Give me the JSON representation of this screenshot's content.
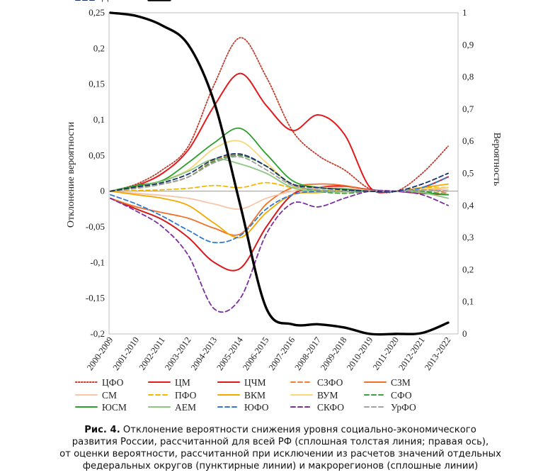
{
  "chart_data": {
    "type": "line",
    "title": "",
    "xlabel": "",
    "ylabel": "Отклонение вероятности",
    "ylabel_right": "Вероятность",
    "ylim": [
      -0.2,
      0.25
    ],
    "ylim_right": [
      0,
      1
    ],
    "yticks": [
      "-0,2",
      "-0,15",
      "-0,1",
      "-0,05",
      "0",
      "0,05",
      "0,1",
      "0,15",
      "0,2",
      "0,25"
    ],
    "yticks_right": [
      "0",
      "0,1",
      "0,2",
      "0,3",
      "0,4",
      "0,5",
      "0,6",
      "0,7",
      "0,8",
      "0,9",
      "1"
    ],
    "categories": [
      "2000-2009",
      "2001-2010",
      "2002-2011",
      "2003-2012",
      "2004-2013",
      "2005-2014",
      "2006-2015",
      "2007-2016",
      "2008-2017",
      "2009-2018",
      "2010-2019",
      "2011-2020",
      "2012-2021",
      "2013-2022"
    ],
    "legend_position": "bottom",
    "series": [
      {
        "name": "ЦФО",
        "color": "#c0392b",
        "dash": "dot",
        "width": 1.8,
        "axis": "left",
        "values": [
          0.0,
          0.01,
          0.03,
          0.063,
          0.15,
          0.215,
          0.16,
          0.085,
          0.05,
          0.03,
          0.003,
          0.0,
          0.025,
          0.063
        ]
      },
      {
        "name": "ЦМ",
        "color": "#e31a1c",
        "dash": "solid",
        "width": 2,
        "axis": "left",
        "values": [
          0.0,
          0.008,
          0.025,
          0.058,
          0.12,
          0.165,
          0.12,
          0.085,
          0.107,
          0.08,
          0.005,
          0.0,
          -0.003,
          -0.005
        ]
      },
      {
        "name": "ЦЧМ",
        "color": "#d7191c",
        "dash": "solid",
        "width": 2,
        "axis": "left",
        "values": [
          -0.01,
          -0.025,
          -0.04,
          -0.065,
          -0.1,
          -0.108,
          -0.05,
          -0.005,
          0.005,
          0.007,
          0.002,
          0.0,
          0.005,
          0.02
        ]
      },
      {
        "name": "СЗФО",
        "color": "#f08030",
        "dash": "dash",
        "width": 1.8,
        "axis": "left",
        "values": [
          0.0,
          0.005,
          0.01,
          0.02,
          0.043,
          0.05,
          0.035,
          0.01,
          0.005,
          0.003,
          0.0,
          0.0,
          0.003,
          -0.003
        ]
      },
      {
        "name": "СЗМ",
        "color": "#f07028",
        "dash": "solid",
        "width": 1.8,
        "axis": "left",
        "values": [
          -0.01,
          -0.022,
          -0.03,
          -0.038,
          -0.052,
          -0.06,
          -0.018,
          0.005,
          0.01,
          0.008,
          0.001,
          0.0,
          0.002,
          0.005
        ]
      },
      {
        "name": "СМ",
        "color": "#f7c6a8",
        "dash": "solid",
        "width": 1.8,
        "axis": "left",
        "values": [
          0.0,
          -0.003,
          -0.006,
          -0.01,
          -0.018,
          -0.025,
          -0.01,
          0.0,
          0.005,
          0.004,
          0.001,
          0.0,
          0.002,
          0.002
        ]
      },
      {
        "name": "ПФО",
        "color": "#f5b800",
        "dash": "dash",
        "width": 1.8,
        "axis": "left",
        "values": [
          0.0,
          0.001,
          0.002,
          0.004,
          0.008,
          0.005,
          0.012,
          0.005,
          0.002,
          0.001,
          0.0,
          0.0,
          0.005,
          0.005
        ]
      },
      {
        "name": "ВКМ",
        "color": "#f5a800",
        "dash": "solid",
        "width": 1.8,
        "axis": "left",
        "values": [
          0.0,
          -0.005,
          -0.01,
          -0.02,
          -0.045,
          -0.065,
          -0.03,
          -0.005,
          -0.002,
          0.0,
          0.0,
          0.0,
          0.005,
          0.01
        ]
      },
      {
        "name": "ВУМ",
        "color": "#f8d878",
        "dash": "solid",
        "width": 1.8,
        "axis": "left",
        "values": [
          0.0,
          0.006,
          0.015,
          0.03,
          0.06,
          0.07,
          0.04,
          0.008,
          0.0,
          -0.002,
          0.0,
          0.0,
          0.003,
          0.005
        ]
      },
      {
        "name": "СФО",
        "color": "#3ea040",
        "dash": "dash",
        "width": 1.8,
        "axis": "left",
        "values": [
          0.0,
          0.004,
          0.01,
          0.02,
          0.042,
          0.05,
          0.035,
          0.01,
          0.0,
          -0.003,
          0.0,
          0.0,
          0.0,
          -0.005
        ]
      },
      {
        "name": "ЮСМ",
        "color": "#2ca02c",
        "dash": "solid",
        "width": 1.8,
        "axis": "left",
        "values": [
          0.0,
          0.008,
          0.015,
          0.04,
          0.068,
          0.088,
          0.052,
          0.015,
          0.005,
          0.003,
          0.0,
          0.0,
          -0.002,
          -0.005
        ]
      },
      {
        "name": "АЕМ",
        "color": "#8cc882",
        "dash": "solid",
        "width": 1.8,
        "axis": "left",
        "values": [
          0.0,
          0.006,
          0.014,
          0.028,
          0.045,
          0.038,
          0.025,
          0.005,
          0.0,
          0.0,
          0.0,
          0.0,
          -0.002,
          -0.01
        ]
      },
      {
        "name": "ЮФО",
        "color": "#2e7bcf",
        "dash": "dash",
        "width": 1.8,
        "axis": "left",
        "values": [
          -0.005,
          -0.018,
          -0.035,
          -0.055,
          -0.072,
          -0.062,
          -0.025,
          -0.005,
          0.0,
          0.0,
          0.0,
          0.0,
          0.005,
          0.02
        ]
      },
      {
        "name": "СКФО",
        "color": "#7b2fa0",
        "dash": "dash",
        "width": 1.8,
        "axis": "left",
        "values": [
          -0.01,
          -0.028,
          -0.05,
          -0.09,
          -0.165,
          -0.15,
          -0.06,
          -0.017,
          -0.022,
          -0.01,
          0.0,
          0.0,
          -0.005,
          -0.02
        ]
      },
      {
        "name": "УрФО",
        "color": "#a0a0a0",
        "dash": "dash",
        "width": 1.8,
        "axis": "left",
        "values": [
          0.0,
          0.004,
          0.01,
          0.02,
          0.04,
          0.048,
          0.03,
          0.008,
          0.002,
          0.0,
          0.0,
          0.0,
          0.002,
          0.0
        ]
      },
      {
        "name": "ДФО",
        "color": "#1a2f6b",
        "dash": "dash",
        "width": 1.8,
        "axis": "left",
        "values": [
          0.0,
          0.006,
          0.012,
          0.024,
          0.045,
          0.052,
          0.035,
          0.01,
          0.005,
          0.002,
          0.0,
          0.0,
          0.01,
          0.025
        ]
      },
      {
        "name": "РФ",
        "color": "#000000",
        "dash": "solid",
        "width": 3.4,
        "axis": "right",
        "values": [
          1.0,
          0.99,
          0.96,
          0.9,
          0.72,
          0.4,
          0.08,
          0.03,
          0.03,
          0.02,
          0.0,
          0.0,
          0.003,
          0.035
        ]
      }
    ]
  },
  "caption": {
    "label": "Рис. 4.",
    "line1": " Отклонение вероятности снижения уровня социально-экономического",
    "line2": "развития России, рассчитанной для всей РФ (сплошная толстая линия; правая ось),",
    "line3": "от оценки вероятности, рассчитанной при исключении из расчетов значений отдельных",
    "line4": "федеральных округов (пунктирные линии) и макрорегионов (сплошные линии)"
  }
}
